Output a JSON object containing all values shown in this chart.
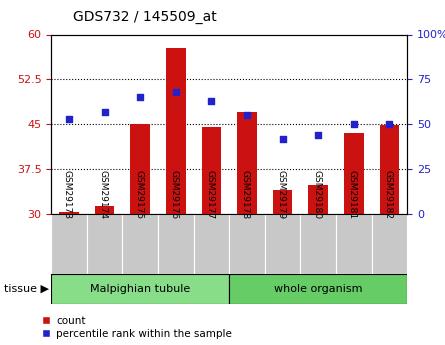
{
  "title": "GDS732 / 145509_at",
  "samples": [
    "GSM29173",
    "GSM29174",
    "GSM29175",
    "GSM29176",
    "GSM29177",
    "GSM29178",
    "GSM29179",
    "GSM29180",
    "GSM29181",
    "GSM29182"
  ],
  "count": [
    30.3,
    31.4,
    45.0,
    57.8,
    44.5,
    47.0,
    34.0,
    34.8,
    43.5,
    44.8
  ],
  "percentile": [
    53,
    57,
    65,
    68,
    63,
    55,
    42,
    44,
    50,
    50
  ],
  "ylim_left": [
    30,
    60
  ],
  "ylim_right": [
    0,
    100
  ],
  "yticks_left": [
    30,
    37.5,
    45,
    52.5,
    60
  ],
  "yticks_right": [
    0,
    25,
    50,
    75,
    100
  ],
  "ytick_labels_left": [
    "30",
    "37.5",
    "45",
    "52.5",
    "60"
  ],
  "ytick_labels_right": [
    "0",
    "25",
    "50",
    "75",
    "100%"
  ],
  "bar_color": "#cc1111",
  "dot_color": "#2222cc",
  "tissue_groups": [
    {
      "label": "Malpighian tubule",
      "start": 0,
      "end": 4,
      "color": "#88dd88"
    },
    {
      "label": "whole organism",
      "start": 5,
      "end": 9,
      "color": "#66cc66"
    }
  ],
  "legend_count": "count",
  "legend_percentile": "percentile rank within the sample"
}
